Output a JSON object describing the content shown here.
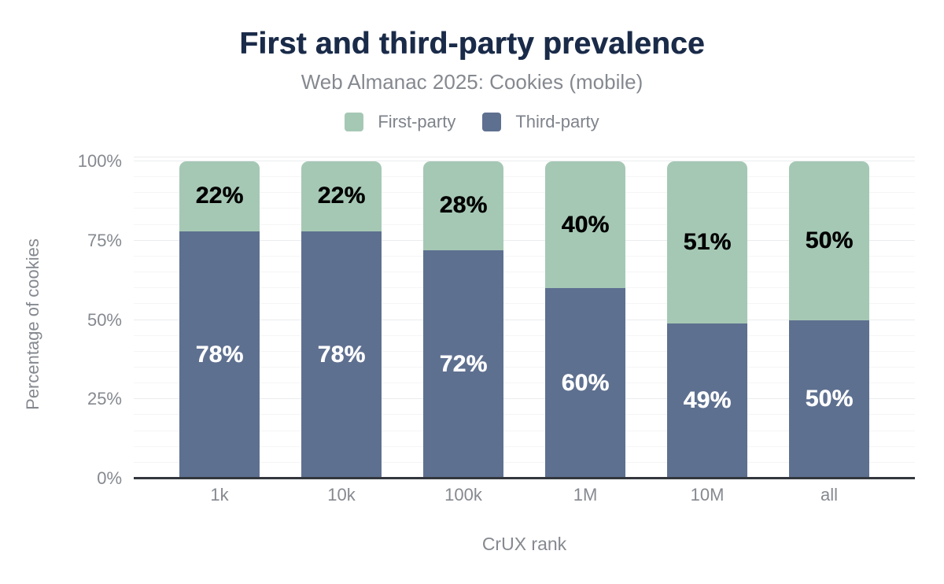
{
  "header": {
    "title": "First and third-party prevalence",
    "subtitle": "Web Almanac 2025: Cookies (mobile)"
  },
  "legend": {
    "items": [
      {
        "label": "First-party",
        "color": "#a5c8b4"
      },
      {
        "label": "Third-party",
        "color": "#5e7090"
      }
    ]
  },
  "colors": {
    "title": "#1a2b49",
    "axis_text": "#85898f",
    "axis_line": "#33373d",
    "gridline_minor": "#f5f5f6",
    "gridline_major": "#ebecee",
    "first_party": "#a5c8b4",
    "third_party": "#5e7090"
  },
  "chart_data": {
    "type": "bar",
    "variant": "stacked-vertical",
    "title": "First and third-party prevalence",
    "subtitle": "Web Almanac 2025: Cookies (mobile)",
    "categories": [
      "1k",
      "10k",
      "100k",
      "1M",
      "10M",
      "all"
    ],
    "series": [
      {
        "name": "Third-party",
        "color": "#5e7090",
        "label_color": "#ffffff",
        "values": [
          78,
          78,
          72,
          60,
          49,
          50
        ]
      },
      {
        "name": "First-party",
        "color": "#a5c8b4",
        "label_color": "#000000",
        "values": [
          22,
          22,
          28,
          40,
          51,
          50
        ]
      }
    ],
    "stack_order_bottom_to_top": [
      "Third-party",
      "First-party"
    ],
    "xlabel": "CrUX rank",
    "ylabel": "Percentage of cookies",
    "ylim": [
      0,
      100
    ],
    "y_ticks": [
      "0%",
      "25%",
      "50%",
      "75%",
      "100%"
    ],
    "grid": {
      "minor_step": 5,
      "major_step": 25,
      "shown": true
    },
    "legend_position": "top",
    "value_label_format": "{v}%"
  }
}
